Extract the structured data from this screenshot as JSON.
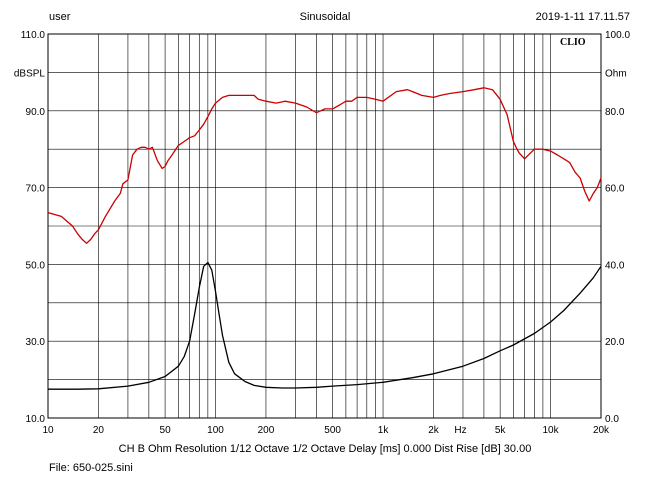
{
  "header": {
    "user": "user",
    "mode": "Sinusoidal",
    "datetime": "2019-1-11 17.11.57"
  },
  "footer": {
    "params": "CH B  Ohm  Resolution 1/12 Octave  1/2 Octave  Delay [ms] 0.000  Dist Rise [dB] 30.00",
    "file": "File: 650-025.sini"
  },
  "chart_data": {
    "type": "line",
    "brand": "CLIO",
    "x_scale": "log",
    "xlim": [
      10,
      20000
    ],
    "ylim_left": [
      10,
      110
    ],
    "ylim_right": [
      0,
      100
    ],
    "ylabel_left": "dBSPL",
    "ylabel_right": "Ohm",
    "grid": true,
    "x_ticks": [
      {
        "value": 10,
        "label": "10"
      },
      {
        "value": 20,
        "label": "20"
      },
      {
        "value": 50,
        "label": "50"
      },
      {
        "value": 100,
        "label": "100"
      },
      {
        "value": 200,
        "label": "200"
      },
      {
        "value": 500,
        "label": "500"
      },
      {
        "value": 1000,
        "label": "1k"
      },
      {
        "value": 2000,
        "label": "2k"
      },
      {
        "value": 5000,
        "label": "5k"
      },
      {
        "value": 10000,
        "label": "10k"
      },
      {
        "value": 20000,
        "label": "20k"
      }
    ],
    "x_unit_label": "Hz",
    "y_ticks_left": [
      "10.0",
      "30.0",
      "50.0",
      "70.0",
      "90.0",
      "110.0"
    ],
    "y_ticks_right": [
      "0.0",
      "20.0",
      "40.0",
      "60.0",
      "80.0",
      "100.0"
    ],
    "series": [
      {
        "axis": "left",
        "color": "#cc0000",
        "x": [
          10,
          12,
          14,
          15,
          16,
          17,
          18,
          19,
          20,
          22,
          25,
          27,
          28,
          30,
          32,
          34,
          36,
          38,
          40,
          42,
          45,
          48,
          50,
          52,
          55,
          60,
          65,
          70,
          75,
          80,
          85,
          90,
          95,
          100,
          110,
          120,
          130,
          150,
          170,
          180,
          200,
          230,
          260,
          300,
          350,
          400,
          450,
          500,
          550,
          600,
          650,
          700,
          800,
          900,
          1000,
          1200,
          1400,
          1500,
          1700,
          2000,
          2200,
          2500,
          3000,
          3500,
          4000,
          4500,
          5000,
          5500,
          6000,
          6300,
          6500,
          7000,
          8000,
          9000,
          10000,
          11000,
          12000,
          13000,
          14000,
          15000,
          16000,
          17000,
          18000,
          19000,
          20000
        ],
        "y": [
          63.5,
          62.5,
          60.0,
          58.0,
          56.5,
          55.5,
          56.5,
          58.0,
          59.0,
          62.5,
          66.5,
          68.5,
          71.0,
          72.0,
          78.5,
          80.0,
          80.5,
          80.5,
          80.0,
          80.5,
          77.0,
          75.0,
          75.5,
          77.0,
          78.5,
          81.0,
          82.0,
          83.0,
          83.5,
          85.0,
          86.5,
          88.5,
          90.5,
          92.0,
          93.5,
          94.0,
          94.0,
          94.0,
          94.0,
          93.0,
          92.5,
          92.0,
          92.5,
          92.0,
          91.0,
          89.5,
          90.5,
          90.5,
          91.5,
          92.5,
          92.5,
          93.5,
          93.5,
          93.0,
          92.5,
          95.0,
          95.5,
          95.0,
          94.0,
          93.5,
          94.0,
          94.5,
          95.0,
          95.5,
          96.0,
          95.5,
          93.0,
          89.0,
          82.0,
          80.0,
          79.0,
          77.5,
          80.0,
          80.0,
          79.5,
          78.5,
          77.5,
          76.5,
          74.0,
          72.5,
          69.0,
          66.5,
          68.5,
          70.0,
          72.5
        ]
      },
      {
        "axis": "left",
        "color": "#000000",
        "x": [
          10,
          15,
          20,
          30,
          40,
          50,
          60,
          65,
          70,
          75,
          80,
          85,
          90,
          95,
          100,
          105,
          110,
          120,
          130,
          150,
          170,
          200,
          250,
          300,
          400,
          500,
          700,
          1000,
          1500,
          2000,
          3000,
          4000,
          5000,
          6000,
          8000,
          10000,
          12000,
          15000,
          18000,
          20000
        ],
        "y": [
          17.5,
          17.5,
          17.6,
          18.3,
          19.3,
          20.8,
          23.5,
          26.0,
          30.0,
          37.0,
          44.0,
          49.5,
          50.5,
          48.5,
          43.0,
          37.0,
          31.5,
          24.5,
          21.5,
          19.5,
          18.5,
          18.0,
          17.8,
          17.8,
          18.0,
          18.3,
          18.7,
          19.3,
          20.5,
          21.5,
          23.5,
          25.5,
          27.5,
          29.0,
          32.0,
          35.0,
          38.0,
          42.5,
          46.5,
          49.5
        ]
      }
    ]
  }
}
